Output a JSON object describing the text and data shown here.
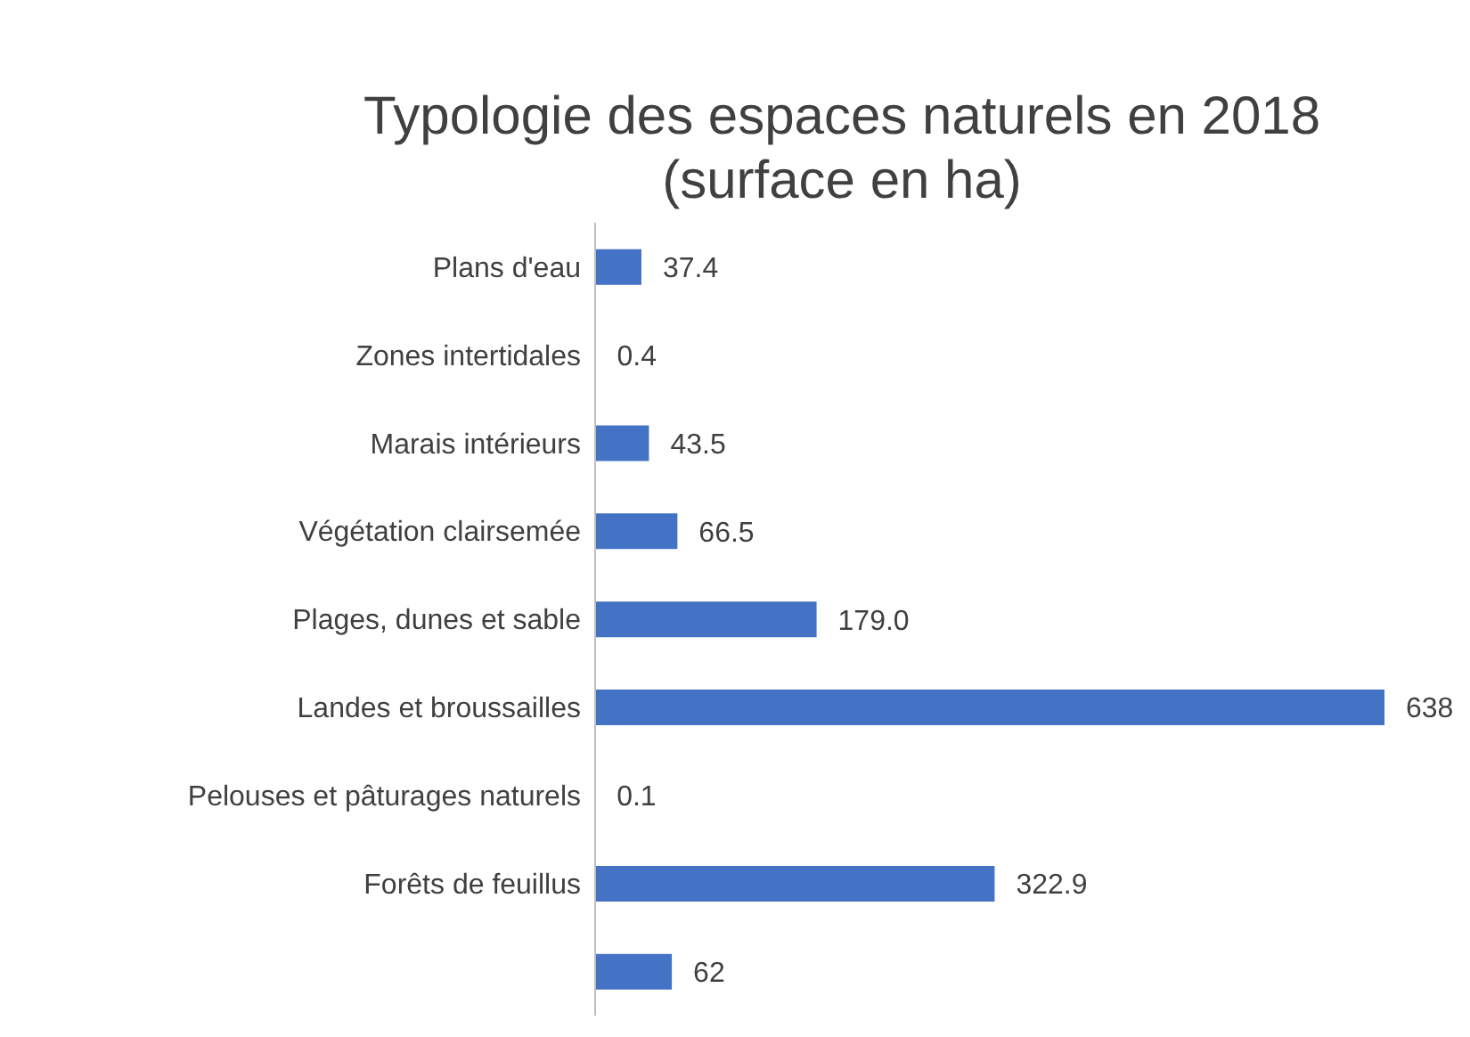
{
  "chart_data": {
    "type": "bar",
    "orientation": "horizontal",
    "title": "Typologie des espaces naturels en 2018\n(surface en ha)",
    "categories": [
      "Plans d'eau",
      "Zones intertidales",
      "Marais intérieurs",
      "Végétation clairsemée",
      "Plages, dunes et sable",
      "Landes et broussailles",
      "Pelouses et pâturages naturels",
      "Forêts de feuillus",
      null
    ],
    "values": [
      37.4,
      0.4,
      43.5,
      66.5,
      179.0,
      638,
      0.1,
      322.9,
      62
    ],
    "value_labels": [
      "37.4",
      "0.4",
      "43.5",
      "66.5",
      "179.0",
      "638",
      "0.1",
      "322.9",
      "62"
    ],
    "color": "#4472c4"
  }
}
